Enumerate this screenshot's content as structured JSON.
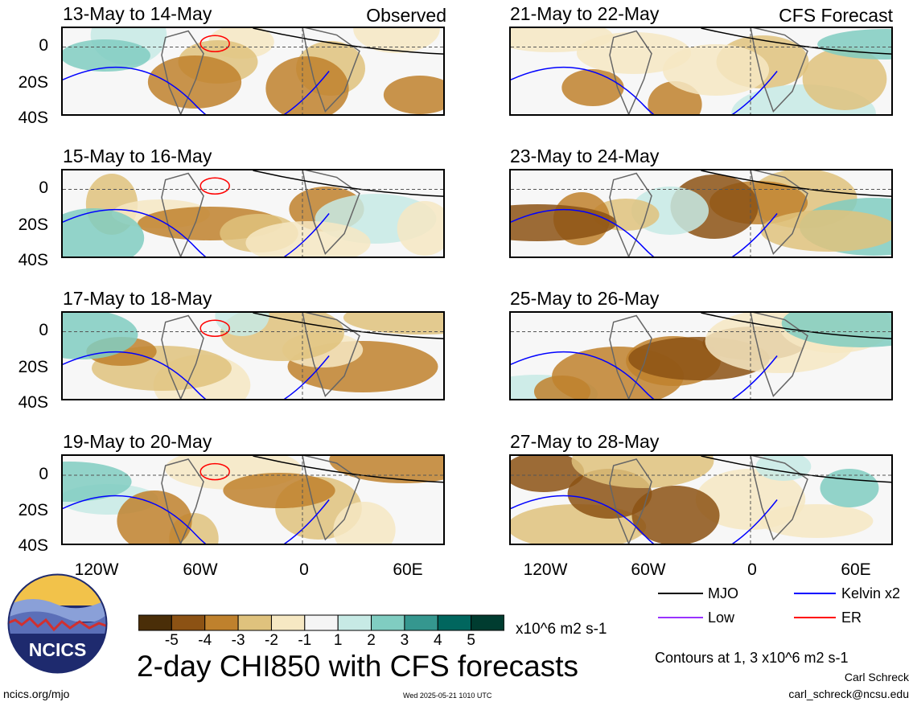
{
  "main_title": "2-day CHI850 with CFS forecasts",
  "source_label": "ncics.org/mjo",
  "timestamp": "Wed 2025-05-21 1010 UTC",
  "author": "Carl Schreck",
  "email": "carl_schreck@ncsu.edu",
  "contour_note": "Contours at 1, 3 x10^6 m2 s-1",
  "logo_text": "NCICS",
  "corner_labels": {
    "left": "Observed",
    "right": "CFS Forecast"
  },
  "y_ticks": [
    "0",
    "20S",
    "40S"
  ],
  "x_ticks": [
    "120W",
    "60W",
    "0",
    "60E"
  ],
  "legend": [
    {
      "label": "MJO",
      "color": "#000000"
    },
    {
      "label": "Kelvin x2",
      "color": "#0000ff"
    },
    {
      "label": "Low",
      "color": "#9933ff"
    },
    {
      "label": "ER",
      "color": "#ff0000"
    }
  ],
  "colorbar": {
    "unit": "x10^6 m2 s-1",
    "tick_labels": [
      "-5",
      "-4",
      "-3",
      "-2",
      "-1",
      "1",
      "2",
      "3",
      "4",
      "5"
    ],
    "colors": [
      "#4a2e08",
      "#8c5214",
      "#bf812d",
      "#dfc27d",
      "#f6e8c3",
      "#f5f5f5",
      "#c7eae5",
      "#80cdc1",
      "#35978f",
      "#01665e",
      "#003c30"
    ]
  },
  "panels": [
    {
      "title": "13-May to 14-May",
      "kind": "observed"
    },
    {
      "title": "15-May to 16-May",
      "kind": "observed"
    },
    {
      "title": "17-May to 18-May",
      "kind": "observed"
    },
    {
      "title": "19-May to 20-May",
      "kind": "observed"
    },
    {
      "title": "21-May to 22-May",
      "kind": "forecast"
    },
    {
      "title": "23-May to 24-May",
      "kind": "forecast"
    },
    {
      "title": "25-May to 26-May",
      "kind": "forecast"
    },
    {
      "title": "27-May to 28-May",
      "kind": "forecast"
    }
  ]
}
